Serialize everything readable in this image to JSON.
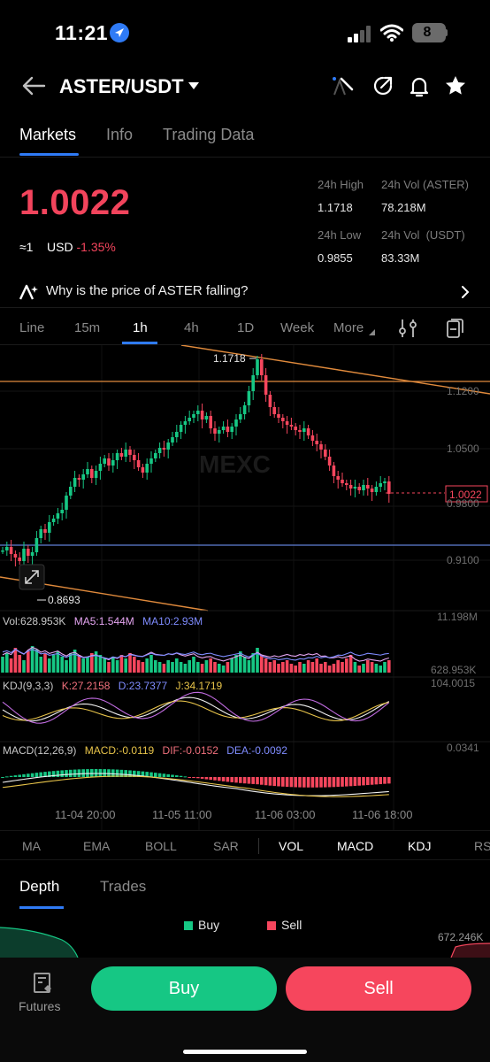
{
  "status": {
    "time": "11:21",
    "battery": "8"
  },
  "header": {
    "pair": "ASTER/USDT"
  },
  "tabs": [
    "Markets",
    "Info",
    "Trading Data"
  ],
  "price": {
    "last": "1.0022",
    "approx": "≈1",
    "currency": "USD",
    "change": "-1.35%",
    "high_label": "24h High",
    "high": "1.1718",
    "low_label": "24h Low",
    "low": "0.9855",
    "vol_base_label": "24h Vol (ASTER)",
    "vol_base": "78.218M",
    "vol_quote_label": "24h Vol  (USDT)",
    "vol_quote": "83.33M"
  },
  "news": {
    "text": "Why is the price of ASTER falling?"
  },
  "intervals": [
    "Line",
    "15m",
    "1h",
    "4h",
    "1D",
    "Week",
    "More"
  ],
  "chart_data": {
    "type": "candlestick",
    "high_marker": "1.1718",
    "low_marker": "0.8693",
    "current_price": "1.0022",
    "watermark": "MEXC",
    "y_ticks": [
      "1.1200",
      "1.0500",
      "0.9800",
      "0.9100"
    ],
    "x_ticks": [
      "11-04 20:00",
      "11-05 11:00",
      "11-06 03:00",
      "11-06 18:00"
    ],
    "colors": {
      "up": "#16c784",
      "down": "#f6465d",
      "ma5": "#e4a4f0",
      "ma10": "#7f8cff",
      "trend": "#e08a3c",
      "level": "#5f7fd6"
    }
  },
  "indicators": {
    "vol": {
      "label": "Vol:628.953K",
      "ma5": "MA5:1.544M",
      "ma10": "MA10:2.93M",
      "top": "11.198M",
      "current": "628.953K"
    },
    "kdj": {
      "label": "KDJ(9,3,3)",
      "k": "K:27.2158",
      "d": "D:23.7377",
      "j": "J:34.1719",
      "top": "104.0015"
    },
    "macd": {
      "label": "MACD(12,26,9)",
      "macd": "MACD:-0.0119",
      "dif": "DIF:-0.0152",
      "dea": "DEA:-0.0092",
      "top": "0.0341"
    }
  },
  "indicator_tabs": [
    "MA",
    "EMA",
    "BOLL",
    "SAR",
    "VOL",
    "MACD",
    "KDJ",
    "RS"
  ],
  "depth": {
    "tabs": [
      "Depth",
      "Trades"
    ],
    "buy": "Buy",
    "sell": "Sell",
    "right_value": "672.246K"
  },
  "bottom": {
    "futures": "Futures",
    "buy": "Buy",
    "sell": "Sell"
  }
}
